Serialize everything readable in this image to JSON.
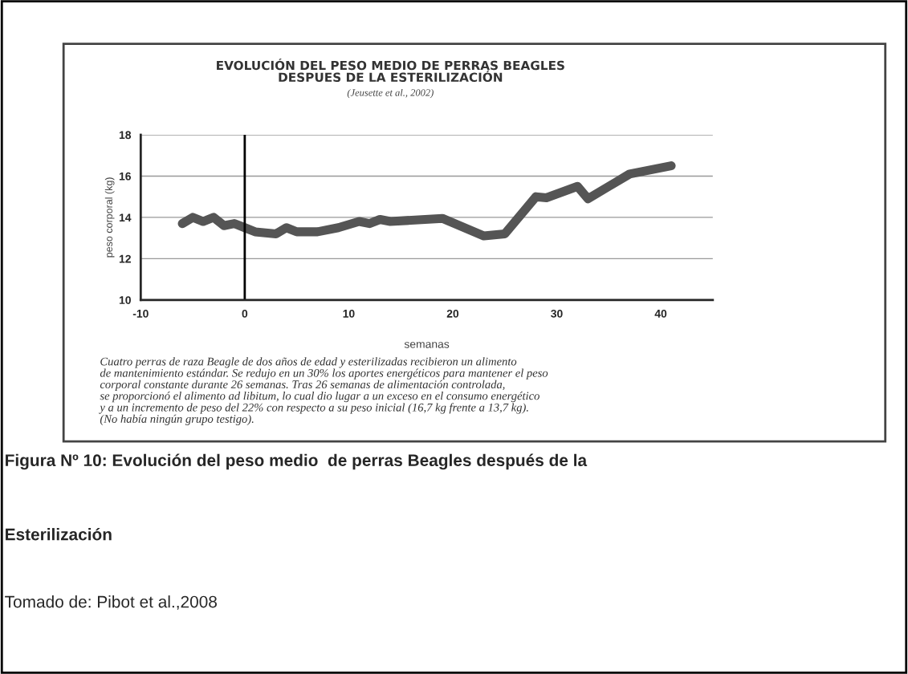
{
  "chart_data": {
    "type": "line",
    "title": "EVOLUCIÓN DEL PESO MEDIO DE PERRAS BEAGLES\nDESPUES DE LA ESTERILIZACIÓN",
    "subtitle": "(Jeusette et al., 2002)",
    "xlabel": "semanas",
    "ylabel": "peso corporal (kg)",
    "x": [
      -6,
      -5,
      -4,
      -3,
      -2,
      -1,
      0,
      1,
      3,
      4,
      5,
      7,
      9,
      11,
      12,
      13,
      14,
      19,
      23,
      25,
      28,
      29,
      32,
      33,
      37,
      41
    ],
    "series": [
      {
        "color": "#555555",
        "values": [
          13.7,
          14.0,
          13.8,
          14.0,
          13.6,
          13.7,
          13.5,
          13.3,
          13.2,
          13.5,
          13.3,
          13.3,
          13.5,
          13.8,
          13.7,
          13.9,
          13.8,
          13.95,
          13.1,
          13.2,
          15.0,
          14.95,
          15.5,
          14.9,
          16.1,
          16.5
        ]
      }
    ],
    "xlim": [
      -10,
      45
    ],
    "xticks": [
      -10,
      0,
      10,
      20,
      30,
      40
    ],
    "ylim": [
      10,
      18
    ],
    "yticks": [
      10,
      12,
      14,
      16,
      18
    ],
    "grid": "y",
    "legend": false,
    "marker": "none",
    "line_style": "solid",
    "ref_lines": [
      {
        "axis": "x",
        "value": 0,
        "color": "#000000"
      }
    ],
    "annotations": [
      "Cuatro perras de raza Beagle de dos años de edad y esterilizadas recibieron un alimento\nde mantenimiento estándar. Se redujo en un 30% los aportes energéticos para mantener el peso\ncorporal constante durante 26 semanas. Tras 26 semanas de alimentación controlada,\nse proporcionó el alimento ad libitum, lo cual dio lugar a un exceso en el consumo energético\ny a un incremento de peso del 22% con respecto a su peso inicial (16,7 kg frente a 13,7 kg).\n(No había ningún grupo testigo).",
      "Figura Nº 10: Evolución del peso medio  de perras Beagles después de la",
      "Esterilización",
      "Tomado de: Pibot et al.,2008"
    ]
  }
}
